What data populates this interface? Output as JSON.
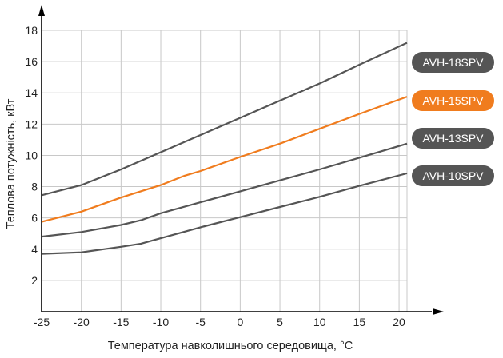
{
  "chart_data": {
    "type": "line",
    "xlabel": "Температура навколишнього середовища, °C",
    "ylabel": "Теплова потужність, кВт",
    "xlim": [
      -25,
      21
    ],
    "ylim": [
      0,
      18
    ],
    "x_ticks": [
      -25,
      -20,
      -15,
      -10,
      -5,
      0,
      5,
      10,
      15,
      20
    ],
    "y_ticks": [
      2,
      4,
      6,
      8,
      10,
      12,
      14,
      16,
      18
    ],
    "grid": true,
    "legend_placement": "right, at line ends",
    "series": [
      {
        "name": "AVH-18SPV",
        "color": "#555555",
        "label_bg": "#555555",
        "x": [
          -25,
          -20,
          -15,
          -10,
          -5,
          0,
          5,
          10,
          15,
          21
        ],
        "y": [
          7.45,
          8.1,
          9.1,
          10.2,
          11.3,
          12.4,
          13.5,
          14.6,
          15.8,
          17.2
        ]
      },
      {
        "name": "AVH-15SPV",
        "color": "#f07c1e",
        "label_bg": "#f07c1e",
        "x": [
          -25,
          -20,
          -15,
          -10,
          -7,
          -5,
          0,
          5,
          10,
          15,
          21
        ],
        "y": [
          5.75,
          6.4,
          7.3,
          8.1,
          8.7,
          9.0,
          9.9,
          10.75,
          11.7,
          12.65,
          13.75
        ]
      },
      {
        "name": "AVH-13SPV",
        "color": "#555555",
        "label_bg": "#555555",
        "x": [
          -25,
          -20,
          -15,
          -12.5,
          -10,
          -5,
          0,
          5,
          10,
          15,
          21
        ],
        "y": [
          4.8,
          5.1,
          5.55,
          5.85,
          6.3,
          7.0,
          7.7,
          8.4,
          9.1,
          9.85,
          10.75
        ]
      },
      {
        "name": "AVH-10SPV",
        "color": "#555555",
        "label_bg": "#555555",
        "x": [
          -25,
          -20,
          -15,
          -12.5,
          -10,
          -5,
          0,
          5,
          10,
          15,
          21
        ],
        "y": [
          3.7,
          3.8,
          4.15,
          4.35,
          4.7,
          5.4,
          6.05,
          6.7,
          7.35,
          8.05,
          8.85
        ]
      }
    ]
  }
}
